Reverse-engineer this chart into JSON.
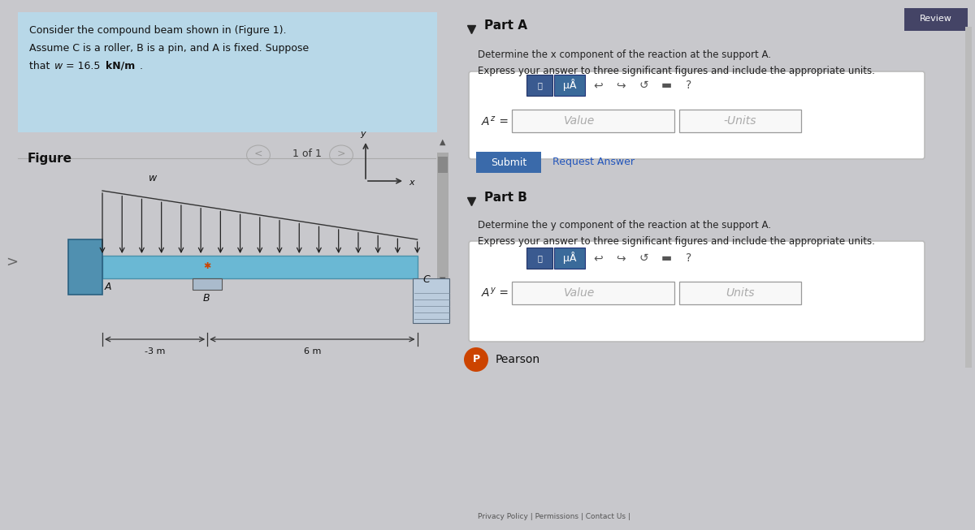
{
  "bg_color": "#c8c8cc",
  "left_bg": "#c8c8cc",
  "right_bg": "#e0e0e4",
  "header_bg": "#b8d8e8",
  "problem_line1": "Consider the compound beam shown in (Figure 1).",
  "problem_line2": "Assume C is a roller, B is a pin, and A is fixed. Suppose",
  "problem_line3a": "that ",
  "problem_line3b": "w",
  "problem_line3c": " = 16.5 ",
  "problem_line3d": "kN/m",
  "problem_line3e": ".",
  "figure_label": "Figure",
  "nav_text": "1 of 1",
  "beam_color": "#6ab8d4",
  "beam_edge": "#4a90aa",
  "wall_color": "#5090b0",
  "wall_edge": "#2a6080",
  "pin_color": "#bbccdd",
  "roller_color": "#bbccdd",
  "load_color": "#222222",
  "part_a_title": "Part A",
  "part_a_desc1": "Determine the x component of the reaction at the support A.",
  "part_a_desc2": "Express your answer to three significant figures and include the appropriate units.",
  "part_b_title": "Part B",
  "part_b_desc1": "Determine the y component of the reaction at the support A.",
  "part_b_desc2": "Express your answer to three significant figures and include the appropriate units.",
  "submit_text": "Submit",
  "request_text": "Request Answer",
  "value_text": "Value",
  "units_text": "Units",
  "pearson_text": "Pearson",
  "review_text": "Review",
  "footer_text": "Privacy Policy | Permissions | Contact Us |",
  "dim_3m": "-3 m",
  "dim_6m": "6 m",
  "label_A": "A",
  "label_B": "B",
  "label_C": "C",
  "label_w": "w",
  "label_x": "x",
  "label_y": "y",
  "toolbar_bg1": "#3a5a90",
  "toolbar_bg2": "#3a6a9a",
  "submit_bg": "#3a6aaa",
  "review_bg": "#444466",
  "icon_color": "#555555",
  "link_color": "#2255bb",
  "input_bg": "#f8f8f8",
  "box_edge": "#999999"
}
